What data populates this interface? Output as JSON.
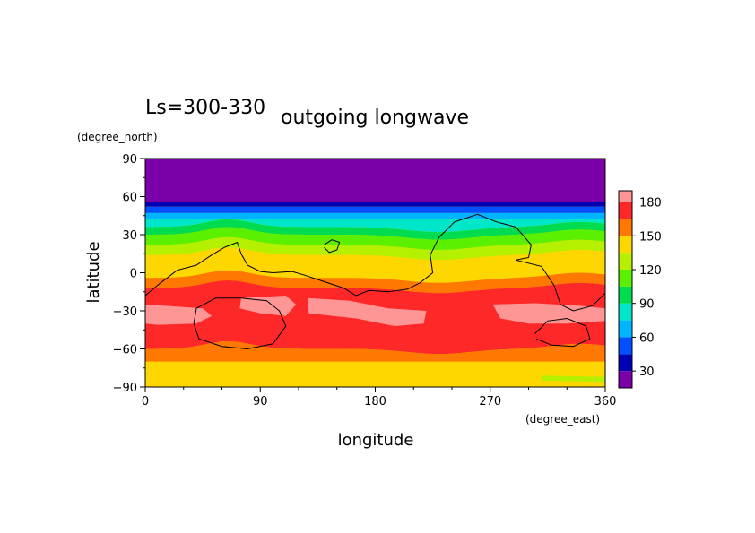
{
  "chart_data": {
    "type": "heatmap",
    "subtitle": "Ls=300-330",
    "title": "outgoing longwave",
    "xlabel": "longitude",
    "ylabel": "latitude",
    "x_unit": "(degree_east)",
    "y_unit": "(degree_north)",
    "xlim": [
      0,
      360
    ],
    "ylim": [
      -90,
      90
    ],
    "x_ticks": [
      "0",
      "90",
      "180",
      "270",
      "360"
    ],
    "y_ticks": [
      "90",
      "60",
      "30",
      "0",
      "−30",
      "−60",
      "−90"
    ],
    "x_tick_values": [
      0,
      90,
      180,
      270,
      360
    ],
    "y_tick_values": [
      90,
      60,
      30,
      0,
      -30,
      -60,
      -90
    ],
    "colorbar": {
      "levels": [
        15,
        30,
        45,
        60,
        75,
        90,
        105,
        120,
        135,
        150,
        165,
        180,
        190
      ],
      "labels": [
        "30",
        "60",
        "90",
        "120",
        "150",
        "180"
      ],
      "label_values": [
        30,
        60,
        90,
        120,
        150,
        180
      ],
      "colors": [
        "#7a00a8",
        "#0000b4",
        "#0050ff",
        "#00b4ff",
        "#00e6c8",
        "#00dc50",
        "#5af000",
        "#b4f000",
        "#ffd700",
        "#ff7800",
        "#ff2828",
        "#ff9696"
      ]
    },
    "latitude_bands": [
      {
        "lat_min": 56,
        "lat_max": 90,
        "level": "<15"
      },
      {
        "lat_min": 52,
        "lat_max": 56,
        "level": "15-30"
      },
      {
        "lat_min": 47,
        "lat_max": 52,
        "level": "30-45"
      },
      {
        "lat_min": 42,
        "lat_max": 47,
        "level": "45-60"
      },
      {
        "lat_min": 36,
        "lat_max": 42,
        "level": "60-75"
      },
      {
        "lat_min": 30,
        "lat_max": 36,
        "level": "75-90"
      },
      {
        "lat_min": 22,
        "lat_max": 30,
        "level": "90-105"
      },
      {
        "lat_min": 14,
        "lat_max": 22,
        "level": "105-120"
      },
      {
        "lat_min": 6,
        "lat_max": 14,
        "level": "120-135"
      },
      {
        "lat_min": -4,
        "lat_max": 6,
        "level": "135-150"
      },
      {
        "lat_min": -12,
        "lat_max": -4,
        "level": "150-165"
      },
      {
        "lat_min": -60,
        "lat_max": -12,
        "level": "165-180"
      },
      {
        "lat_min": -70,
        "lat_max": -60,
        "level": "150-165"
      },
      {
        "lat_min": -90,
        "lat_max": -70,
        "level": "135-150"
      }
    ],
    "high_patches": [
      {
        "level": ">180",
        "lon_center": 18,
        "lat_center": -32,
        "note": "western lobe"
      },
      {
        "level": ">180",
        "lon_center": 100,
        "lat_center": -28
      },
      {
        "level": ">180",
        "lon_center": 185,
        "lat_center": -34
      },
      {
        "level": ">180",
        "lon_center": 315,
        "lat_center": -32
      }
    ],
    "contour_overlay": "black coastline-like topography contour"
  }
}
